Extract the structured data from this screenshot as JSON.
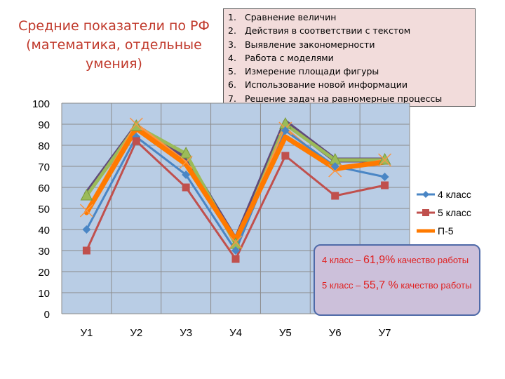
{
  "title_line1": "Средние показатели по РФ",
  "title_line2": "(математика, отдельные",
  "title_line3": "умения)",
  "skills": [
    {
      "num": "1.",
      "text": "Сравнение величин"
    },
    {
      "num": "2.",
      "text": "Действия в соответствии с текстом"
    },
    {
      "num": "3.",
      "text": "Выявление закономерности"
    },
    {
      "num": "4.",
      "text": "Работа с моделями"
    },
    {
      "num": "5.",
      "text": "Измерение площади фигуры"
    },
    {
      "num": "6.",
      "text": "Использование новой информации"
    },
    {
      "num": "7.",
      "text": "Решение задач на равномерные процессы"
    }
  ],
  "quality": {
    "grade4_prefix": "4 класс – ",
    "grade4_value": "61,9%",
    "grade4_suffix": " качество работы",
    "grade5_prefix": "5 класс – ",
    "grade5_value": "55,7 %",
    "grade5_suffix": " качество работы"
  },
  "chart_data": {
    "type": "line",
    "categories": [
      "У1",
      "У2",
      "У3",
      "У4",
      "У5",
      "У6",
      "У7"
    ],
    "ylim": [
      0,
      100
    ],
    "yticks": [
      0,
      10,
      20,
      30,
      40,
      50,
      60,
      70,
      80,
      90,
      100
    ],
    "grid": true,
    "legend_position": "right",
    "series": [
      {
        "name": "",
        "color": "#604a7b",
        "marker": "none",
        "values": [
          57,
          89,
          74,
          35,
          91,
          73,
          73
        ]
      },
      {
        "name": "",
        "color": "#9bbb59",
        "marker": "triangle",
        "values": [
          56,
          89,
          76,
          33,
          90,
          73,
          73
        ]
      },
      {
        "name": "",
        "color": "#f79646",
        "marker": "x",
        "values": [
          49,
          90,
          72,
          34,
          88,
          68,
          73
        ]
      },
      {
        "name": "4 класс",
        "color": "#4a86c5",
        "marker": "diamond",
        "values": [
          40,
          84,
          66,
          30,
          87,
          70,
          65
        ]
      },
      {
        "name": "5 класс",
        "color": "#c0504d",
        "marker": "square",
        "values": [
          30,
          82,
          60,
          26,
          75,
          56,
          61
        ]
      },
      {
        "name": "П-5",
        "color": "#ff7a00",
        "marker": "none",
        "values": [
          48,
          88,
          71,
          35,
          84,
          69,
          72
        ]
      }
    ]
  }
}
